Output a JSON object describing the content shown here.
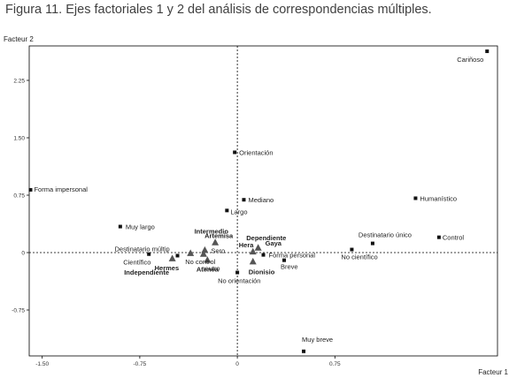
{
  "caption": "Figura 11. Ejes factoriales 1 y 2 del análisis de correspondencias múltiples.",
  "chart_data": {
    "type": "scatter",
    "xlabel": "Facteur 1",
    "ylabel": "Facteur 2",
    "xlim": [
      -1.6,
      2.0
    ],
    "ylim": [
      -1.35,
      2.7
    ],
    "xticks": [
      -1.5,
      -0.75,
      0,
      0.75
    ],
    "xtick_labels": [
      "-1.50",
      "-0.75",
      "0",
      "0.75"
    ],
    "yticks": [
      -0.75,
      0,
      0.75,
      1.5,
      2.25
    ],
    "ytick_labels": [
      "-0.75",
      "0",
      "0.75",
      "1.50",
      "2.25"
    ],
    "grid": false,
    "reference_lines": "dashed at x=0 and y=0",
    "points": [
      {
        "label": "Cariñoso",
        "x": 1.92,
        "y": 2.63,
        "marker": "square",
        "bold": false
      },
      {
        "label": "Orientación",
        "x": -0.02,
        "y": 1.31,
        "marker": "square",
        "bold": false
      },
      {
        "label": "Forma impersonal",
        "x": -1.59,
        "y": 0.82,
        "marker": "square",
        "bold": false
      },
      {
        "label": "Humanístico",
        "x": 1.37,
        "y": 0.71,
        "marker": "square",
        "bold": false
      },
      {
        "label": "Mediano",
        "x": 0.05,
        "y": 0.69,
        "marker": "square",
        "bold": false
      },
      {
        "label": "Largo",
        "x": -0.08,
        "y": 0.55,
        "marker": "square",
        "bold": false
      },
      {
        "label": "Muy largo",
        "x": -0.9,
        "y": 0.34,
        "marker": "square",
        "bold": false
      },
      {
        "label": "Control",
        "x": 1.55,
        "y": 0.2,
        "marker": "square",
        "bold": false
      },
      {
        "label": "Destinatario único",
        "x": 1.04,
        "y": 0.12,
        "marker": "square",
        "bold": false
      },
      {
        "label": "No científico",
        "x": 0.88,
        "y": 0.04,
        "marker": "square",
        "bold": false
      },
      {
        "label": "Destinatario múltip",
        "x": -0.46,
        "y": -0.04,
        "marker": "square",
        "bold": false
      },
      {
        "label": "Científico",
        "x": -0.68,
        "y": -0.02,
        "marker": "square",
        "bold": false
      },
      {
        "label": "Forma personal",
        "x": 0.2,
        "y": -0.03,
        "marker": "square",
        "bold": false
      },
      {
        "label": "Breve",
        "x": 0.36,
        "y": -0.1,
        "marker": "square",
        "bold": false
      },
      {
        "label": "No orientación",
        "x": 0.0,
        "y": -0.26,
        "marker": "square",
        "bold": false
      },
      {
        "label": "Muy breve",
        "x": 0.51,
        "y": -1.29,
        "marker": "square",
        "bold": false
      },
      {
        "label": "Intermedio",
        "x": -0.16,
        "y": 0.25,
        "marker": "none",
        "bold": true
      },
      {
        "label": "Artemisa",
        "x": -0.17,
        "y": 0.13,
        "marker": "triangle",
        "bold": true
      },
      {
        "label": "Sero",
        "x": -0.25,
        "y": 0.03,
        "marker": "triangle",
        "bold": false
      },
      {
        "label": "Dependiente",
        "x": 0.11,
        "y": 0.16,
        "marker": "none",
        "bold": true
      },
      {
        "label": "Hera",
        "x": 0.12,
        "y": 0.01,
        "marker": "triangle",
        "bold": true
      },
      {
        "label": "Gaya",
        "x": 0.16,
        "y": 0.06,
        "marker": "triangle",
        "bold": true
      },
      {
        "label": "Hermes",
        "x": -0.5,
        "y": -0.08,
        "marker": "triangle",
        "bold": true
      },
      {
        "label": "No control",
        "x": -0.36,
        "y": -0.01,
        "marker": "triangle",
        "bold": false
      },
      {
        "label": "Atenea",
        "x": -0.26,
        "y": -0.02,
        "marker": "triangle",
        "bold": true
      },
      {
        "label": "neutro",
        "x": -0.23,
        "y": -0.1,
        "marker": "triangle",
        "bold": false
      },
      {
        "label": "Dionisio",
        "x": 0.12,
        "y": -0.12,
        "marker": "triangle",
        "bold": true
      },
      {
        "label": "Independiente",
        "x": -0.53,
        "y": -0.29,
        "marker": "none",
        "bold": true
      }
    ]
  }
}
